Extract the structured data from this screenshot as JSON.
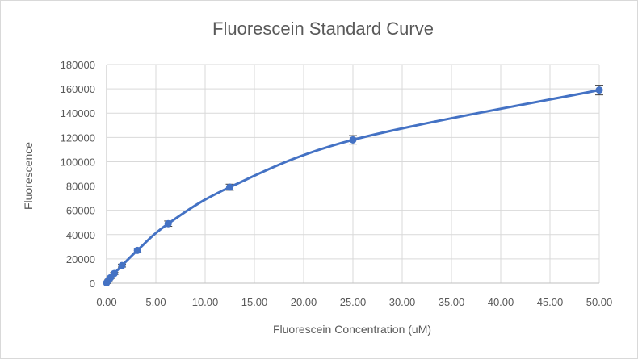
{
  "chart_data": {
    "type": "scatter",
    "title": "Fluorescein Standard Curve",
    "xlabel": "Fluorescein Concentration (uM)",
    "ylabel": "Fluorescence",
    "xlim": [
      0,
      50
    ],
    "ylim": [
      0,
      180000
    ],
    "x_ticks": [
      "0.00",
      "5.00",
      "10.00",
      "15.00",
      "20.00",
      "25.00",
      "30.00",
      "35.00",
      "40.00",
      "45.00",
      "50.00"
    ],
    "y_ticks": [
      "0",
      "20000",
      "40000",
      "60000",
      "80000",
      "100000",
      "120000",
      "140000",
      "160000",
      "180000"
    ],
    "grid": true,
    "legend": "none",
    "series": [
      {
        "x": [
          0,
          0.195,
          0.39,
          0.78,
          1.56,
          3.125,
          6.25,
          12.5,
          25,
          50
        ],
        "y": [
          300,
          2500,
          4500,
          8000,
          14500,
          27000,
          49000,
          79000,
          118000,
          159000
        ],
        "err": [
          500,
          600,
          700,
          900,
          1200,
          1800,
          2200,
          2500,
          3500,
          4000
        ],
        "color": "#4472c4",
        "smooth": true
      }
    ]
  }
}
